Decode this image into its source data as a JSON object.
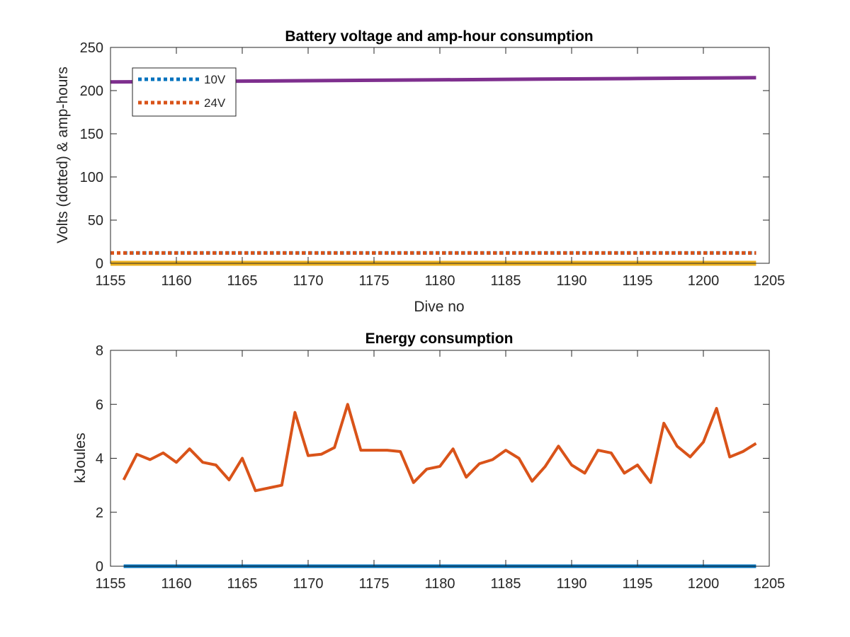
{
  "chart_data": [
    {
      "type": "line",
      "title": "Battery voltage and amp-hour consumption",
      "xlabel": "Dive no",
      "ylabel": "Volts (dotted) & amp-hours",
      "xlim": [
        1155,
        1205
      ],
      "ylim": [
        0,
        250
      ],
      "xticks": [
        1155,
        1160,
        1165,
        1170,
        1175,
        1180,
        1185,
        1190,
        1195,
        1200,
        1205
      ],
      "yticks": [
        0,
        50,
        100,
        150,
        200,
        250
      ],
      "grid": false,
      "legend": {
        "position": "top-left",
        "entries": [
          "10V",
          "24V"
        ]
      },
      "series": [
        {
          "name": "10V",
          "style": "dotted",
          "color": "#0072BD",
          "x": [
            1156,
            1204
          ],
          "y": [
            12,
            12
          ]
        },
        {
          "name": "24V",
          "style": "dotted",
          "color": "#D95319",
          "x": [
            1155,
            1204
          ],
          "y": [
            12,
            12
          ]
        },
        {
          "style": "solid",
          "color": "#EDB120",
          "x": [
            1155,
            1204
          ],
          "y": [
            0,
            0
          ]
        },
        {
          "style": "solid",
          "color": "#7E2F8E",
          "x": [
            1155,
            1160,
            1165,
            1170,
            1175,
            1180,
            1185,
            1190,
            1195,
            1200,
            1204
          ],
          "y": [
            210,
            210.5,
            211,
            211.5,
            212,
            212.5,
            213,
            213.5,
            214,
            214.5,
            215
          ]
        }
      ]
    },
    {
      "type": "line",
      "title": "Energy consumption",
      "xlabel": "",
      "ylabel": "kJoules",
      "xlim": [
        1155,
        1205
      ],
      "ylim": [
        0,
        8
      ],
      "xticks": [
        1155,
        1160,
        1165,
        1170,
        1175,
        1180,
        1185,
        1190,
        1195,
        1200,
        1205
      ],
      "yticks": [
        0,
        2,
        4,
        6,
        8
      ],
      "grid": false,
      "series": [
        {
          "style": "solid",
          "color": "#0072BD",
          "x": [
            1156,
            1204
          ],
          "y": [
            0,
            0
          ]
        },
        {
          "style": "solid",
          "color": "#D95319",
          "x": [
            1156,
            1157,
            1158,
            1159,
            1160,
            1161,
            1162,
            1163,
            1164,
            1165,
            1166,
            1167,
            1168,
            1169,
            1170,
            1171,
            1172,
            1173,
            1174,
            1175,
            1176,
            1177,
            1178,
            1179,
            1180,
            1181,
            1182,
            1183,
            1184,
            1185,
            1186,
            1187,
            1188,
            1189,
            1190,
            1191,
            1192,
            1193,
            1194,
            1195,
            1196,
            1197,
            1198,
            1199,
            1200,
            1201,
            1202,
            1203,
            1204
          ],
          "y": [
            3.2,
            4.15,
            3.95,
            4.2,
            3.85,
            4.35,
            3.85,
            3.75,
            3.2,
            4.0,
            2.8,
            2.9,
            3.0,
            5.7,
            4.1,
            4.15,
            4.4,
            6.0,
            4.3,
            4.3,
            4.3,
            4.25,
            3.1,
            3.6,
            3.7,
            4.35,
            3.3,
            3.8,
            3.95,
            4.3,
            4.0,
            3.15,
            3.7,
            4.45,
            3.75,
            3.45,
            4.3,
            4.2,
            3.45,
            3.75,
            3.1,
            5.3,
            4.45,
            4.05,
            4.6,
            5.85,
            4.05,
            4.25,
            4.55
          ]
        }
      ]
    }
  ]
}
